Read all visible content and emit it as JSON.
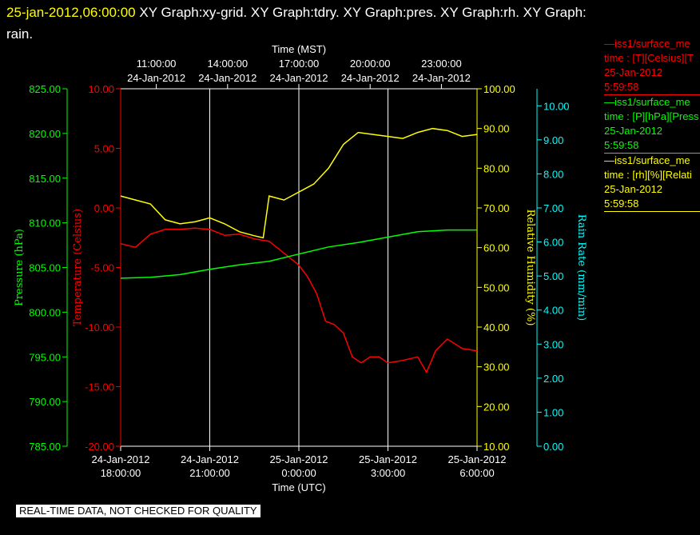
{
  "header": {
    "timestamp": "25-jan-2012,06:00:00",
    "title_rest": "  XY Graph:xy-grid.  XY Graph:tdry.  XY Graph:pres.  XY Graph:rh.  XY Graph: rain."
  },
  "footer": {
    "text": "REAL-TIME DATA, NOT CHECKED FOR QUALITY"
  },
  "legend": [
    {
      "line1": "iss1/surface_me",
      "line2": "time : [T][Celsius][T",
      "line3": "25-Jan-2012",
      "line4": "5:59:58",
      "color": "#ff0000"
    },
    {
      "line1": "iss1/surface_me",
      "line2": "time : [P][hPa][Press",
      "line3": "25-Jan-2012",
      "line4": "5:59:58",
      "color": "#00ff00"
    },
    {
      "line1": "iss1/surface_me",
      "line2": "time : [rh][%][Relati",
      "line3": "25-Jan-2012",
      "line4": "5:59:58",
      "color": "#ffff00"
    }
  ],
  "chart_data": {
    "type": "line",
    "x_top_label": "Time (MST)",
    "x_bottom_label": "Time (UTC)",
    "x_range_utc_hours": [
      18,
      30
    ],
    "top_ticks": [
      {
        "time": "11:00:00",
        "date": "24-Jan-2012"
      },
      {
        "time": "14:00:00",
        "date": "24-Jan-2012"
      },
      {
        "time": "17:00:00",
        "date": "24-Jan-2012"
      },
      {
        "time": "20:00:00",
        "date": "24-Jan-2012"
      },
      {
        "time": "23:00:00",
        "date": "24-Jan-2012"
      }
    ],
    "bottom_ticks": [
      {
        "date": "24-Jan-2012",
        "time": "18:00:00"
      },
      {
        "date": "24-Jan-2012",
        "time": "21:00:00"
      },
      {
        "date": "25-Jan-2012",
        "time": "0:00:00"
      },
      {
        "date": "25-Jan-2012",
        "time": "3:00:00"
      },
      {
        "date": "25-Jan-2012",
        "time": "6:00:00"
      }
    ],
    "grid": true,
    "axes": {
      "pressure": {
        "label": "Pressure (hPa)",
        "color": "#00ff00",
        "range": [
          785,
          825
        ],
        "ticks": [
          "785.00",
          "790.00",
          "795.00",
          "800.00",
          "805.00",
          "810.00",
          "815.00",
          "820.00",
          "825.00"
        ]
      },
      "temperature": {
        "label": "Temperature (Celsius)",
        "color": "#ff0000",
        "range": [
          -20,
          10
        ],
        "ticks": [
          "-20.00",
          "-15.00",
          "-10.00",
          "-5.00",
          "0.00",
          "5.00",
          "10.00"
        ]
      },
      "rh": {
        "label": "Relative Humidity (%)",
        "color": "#ffff00",
        "range": [
          10,
          100
        ],
        "ticks": [
          "10.00",
          "20.00",
          "30.00",
          "40.00",
          "50.00",
          "60.00",
          "70.00",
          "80.00",
          "90.00",
          "100.00"
        ]
      },
      "rain": {
        "label": "Rain Rate (mm/min)",
        "color": "#00ffff",
        "range": [
          0,
          10.5
        ],
        "ticks": [
          "0.00",
          "1.00",
          "2.00",
          "3.00",
          "4.00",
          "5.00",
          "6.00",
          "7.00",
          "8.00",
          "9.00",
          "10.00"
        ]
      }
    },
    "series": [
      {
        "name": "iss1/surface_me time : [T][Celsius][T",
        "axis": "temperature",
        "color": "#ff0000",
        "x": [
          18.0,
          18.5,
          19.0,
          19.5,
          20.0,
          20.5,
          21.0,
          21.5,
          22.0,
          22.5,
          23.0,
          23.5,
          24.0,
          24.3,
          24.6,
          24.9,
          25.2,
          25.5,
          25.8,
          26.1,
          26.4,
          26.7,
          27.0,
          27.5,
          28.0,
          28.3,
          28.6,
          29.0,
          29.5,
          30.0
        ],
        "y": [
          -3.0,
          -3.3,
          -2.2,
          -1.8,
          -1.8,
          -1.7,
          -1.8,
          -2.3,
          -2.2,
          -2.6,
          -2.8,
          -3.8,
          -4.8,
          -5.8,
          -7.2,
          -9.5,
          -9.8,
          -10.5,
          -12.5,
          -13.0,
          -12.5,
          -12.5,
          -13.0,
          -12.8,
          -12.5,
          -13.8,
          -12.0,
          -11.0,
          -11.8,
          -12.0
        ]
      },
      {
        "name": "iss1/surface_me time : [P][hPa][Press",
        "axis": "pressure",
        "color": "#00ff00",
        "x": [
          18,
          19,
          20,
          21,
          22,
          23,
          24,
          25,
          26,
          27,
          28,
          29,
          30
        ],
        "y": [
          803.8,
          803.9,
          804.2,
          804.8,
          805.3,
          805.7,
          806.5,
          807.3,
          807.8,
          808.4,
          809.0,
          809.2,
          809.2
        ]
      },
      {
        "name": "iss1/surface_me time : [rh][%][Relati",
        "axis": "rh",
        "color": "#ffff00",
        "x": [
          18.0,
          18.5,
          19.0,
          19.5,
          20.0,
          20.5,
          21.0,
          21.5,
          22.0,
          22.5,
          22.8,
          23.0,
          23.5,
          24.0,
          24.5,
          25.0,
          25.5,
          26.0,
          26.5,
          27.0,
          27.5,
          28.0,
          28.5,
          29.0,
          29.5,
          30.0
        ],
        "y": [
          73.0,
          72.0,
          71.0,
          67.0,
          66.0,
          66.5,
          67.5,
          66.0,
          64.0,
          63.0,
          62.5,
          73.0,
          72.0,
          74.0,
          76.0,
          80.0,
          86.0,
          89.0,
          88.5,
          88.0,
          87.5,
          89.0,
          90.0,
          89.5,
          88.0,
          88.5
        ]
      }
    ]
  }
}
